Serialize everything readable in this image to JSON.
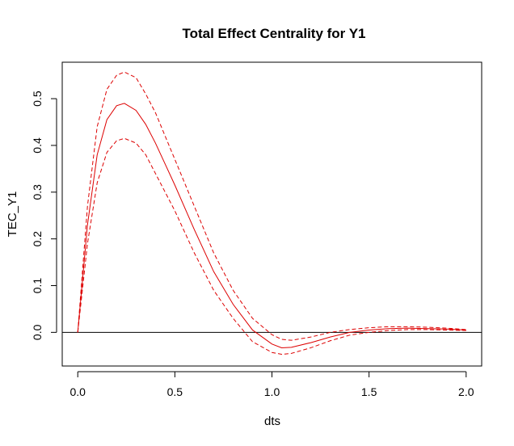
{
  "chart_data": {
    "type": "line",
    "title": "Total Effect Centrality for Y1",
    "xlabel": "dts",
    "ylabel": "TEC_Y1",
    "xlim": [
      -0.08,
      2.08
    ],
    "ylim": [
      -0.072,
      0.578
    ],
    "xticks": [
      0.0,
      0.5,
      1.0,
      1.5,
      2.0
    ],
    "xtick_labels": [
      "0.0",
      "0.5",
      "1.0",
      "1.5",
      "2.0"
    ],
    "yticks": [
      0.0,
      0.1,
      0.2,
      0.3,
      0.4,
      0.5
    ],
    "ytick_labels": [
      "0.0",
      "0.1",
      "0.2",
      "0.3",
      "0.4",
      "0.5"
    ],
    "reference_line": {
      "y": 0,
      "color": "#000000"
    },
    "grid": false,
    "legend": "none",
    "colors": {
      "series": "#dd0000",
      "frame": "#000000"
    },
    "series": [
      {
        "style": "solid",
        "x": [
          0.0,
          0.05,
          0.1,
          0.15,
          0.2,
          0.24,
          0.3,
          0.35,
          0.4,
          0.45,
          0.5,
          0.6,
          0.7,
          0.8,
          0.9,
          1.0,
          1.05,
          1.1,
          1.2,
          1.3,
          1.4,
          1.5,
          1.6,
          1.7,
          1.8,
          1.9,
          2.0
        ],
        "values": [
          0.0,
          0.23,
          0.38,
          0.455,
          0.485,
          0.49,
          0.475,
          0.445,
          0.405,
          0.36,
          0.315,
          0.22,
          0.13,
          0.06,
          0.005,
          -0.025,
          -0.033,
          -0.032,
          -0.022,
          -0.01,
          0.0,
          0.005,
          0.008,
          0.009,
          0.008,
          0.007,
          0.005
        ]
      },
      {
        "style": "dashed",
        "x": [
          0.0,
          0.05,
          0.1,
          0.15,
          0.2,
          0.24,
          0.3,
          0.35,
          0.4,
          0.45,
          0.5,
          0.6,
          0.7,
          0.8,
          0.9,
          1.0,
          1.05,
          1.1,
          1.2,
          1.3,
          1.4,
          1.5,
          1.6,
          1.7,
          1.8,
          1.9,
          2.0
        ],
        "values": [
          0.0,
          0.27,
          0.44,
          0.52,
          0.55,
          0.557,
          0.545,
          0.51,
          0.47,
          0.42,
          0.37,
          0.27,
          0.17,
          0.09,
          0.03,
          -0.005,
          -0.015,
          -0.017,
          -0.01,
          0.0,
          0.006,
          0.01,
          0.012,
          0.012,
          0.011,
          0.009,
          0.006
        ]
      },
      {
        "style": "dashed",
        "x": [
          0.0,
          0.05,
          0.1,
          0.15,
          0.2,
          0.24,
          0.3,
          0.35,
          0.4,
          0.45,
          0.5,
          0.6,
          0.7,
          0.8,
          0.9,
          1.0,
          1.05,
          1.1,
          1.2,
          1.3,
          1.4,
          1.5,
          1.6,
          1.7,
          1.8,
          1.9,
          2.0
        ],
        "values": [
          0.0,
          0.19,
          0.32,
          0.385,
          0.41,
          0.415,
          0.405,
          0.38,
          0.34,
          0.3,
          0.26,
          0.17,
          0.09,
          0.03,
          -0.02,
          -0.043,
          -0.047,
          -0.045,
          -0.033,
          -0.018,
          -0.006,
          0.0,
          0.004,
          0.006,
          0.006,
          0.005,
          0.004
        ]
      }
    ]
  }
}
